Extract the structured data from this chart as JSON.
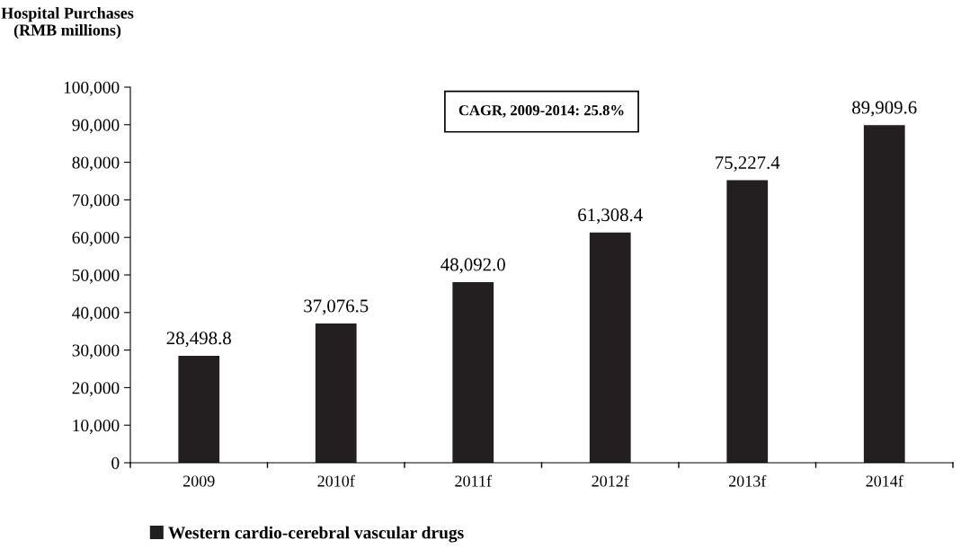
{
  "chart_data": {
    "type": "bar",
    "ylabel": "Hospital Purchases\n(RMB millions)",
    "categories": [
      "2009",
      "2010f",
      "2011f",
      "2012f",
      "2013f",
      "2014f"
    ],
    "series": [
      {
        "name": "Western cardio-cerebral vascular drugs",
        "color": "#231f20",
        "values": [
          28498.8,
          37076.5,
          48092.0,
          61308.4,
          75227.4,
          89909.6
        ],
        "value_labels": [
          "28,498.8",
          "37,076.5",
          "48,092.0",
          "61,308.4",
          "75,227.4",
          "89,909.6"
        ]
      }
    ],
    "annotations": [
      "CAGR, 2009-2014: 25.8%"
    ],
    "ylim": [
      0,
      100000
    ],
    "yticks": [
      0,
      {
        "value": 10000,
        "label": "10,000"
      },
      {
        "value": 20000,
        "label": "20,000"
      },
      {
        "value": 30000,
        "label": "30,000"
      },
      {
        "value": 40000,
        "label": "40,000"
      },
      {
        "value": 50000,
        "label": "50,000"
      },
      {
        "value": 60000,
        "label": "60,000"
      },
      {
        "value": 70000,
        "label": "70,000"
      },
      {
        "value": 80000,
        "label": "80,000"
      },
      {
        "value": 90000,
        "label": "90,000"
      },
      {
        "value": 100000,
        "label": "100,000"
      }
    ],
    "grid": false,
    "legend": "bottom left"
  }
}
